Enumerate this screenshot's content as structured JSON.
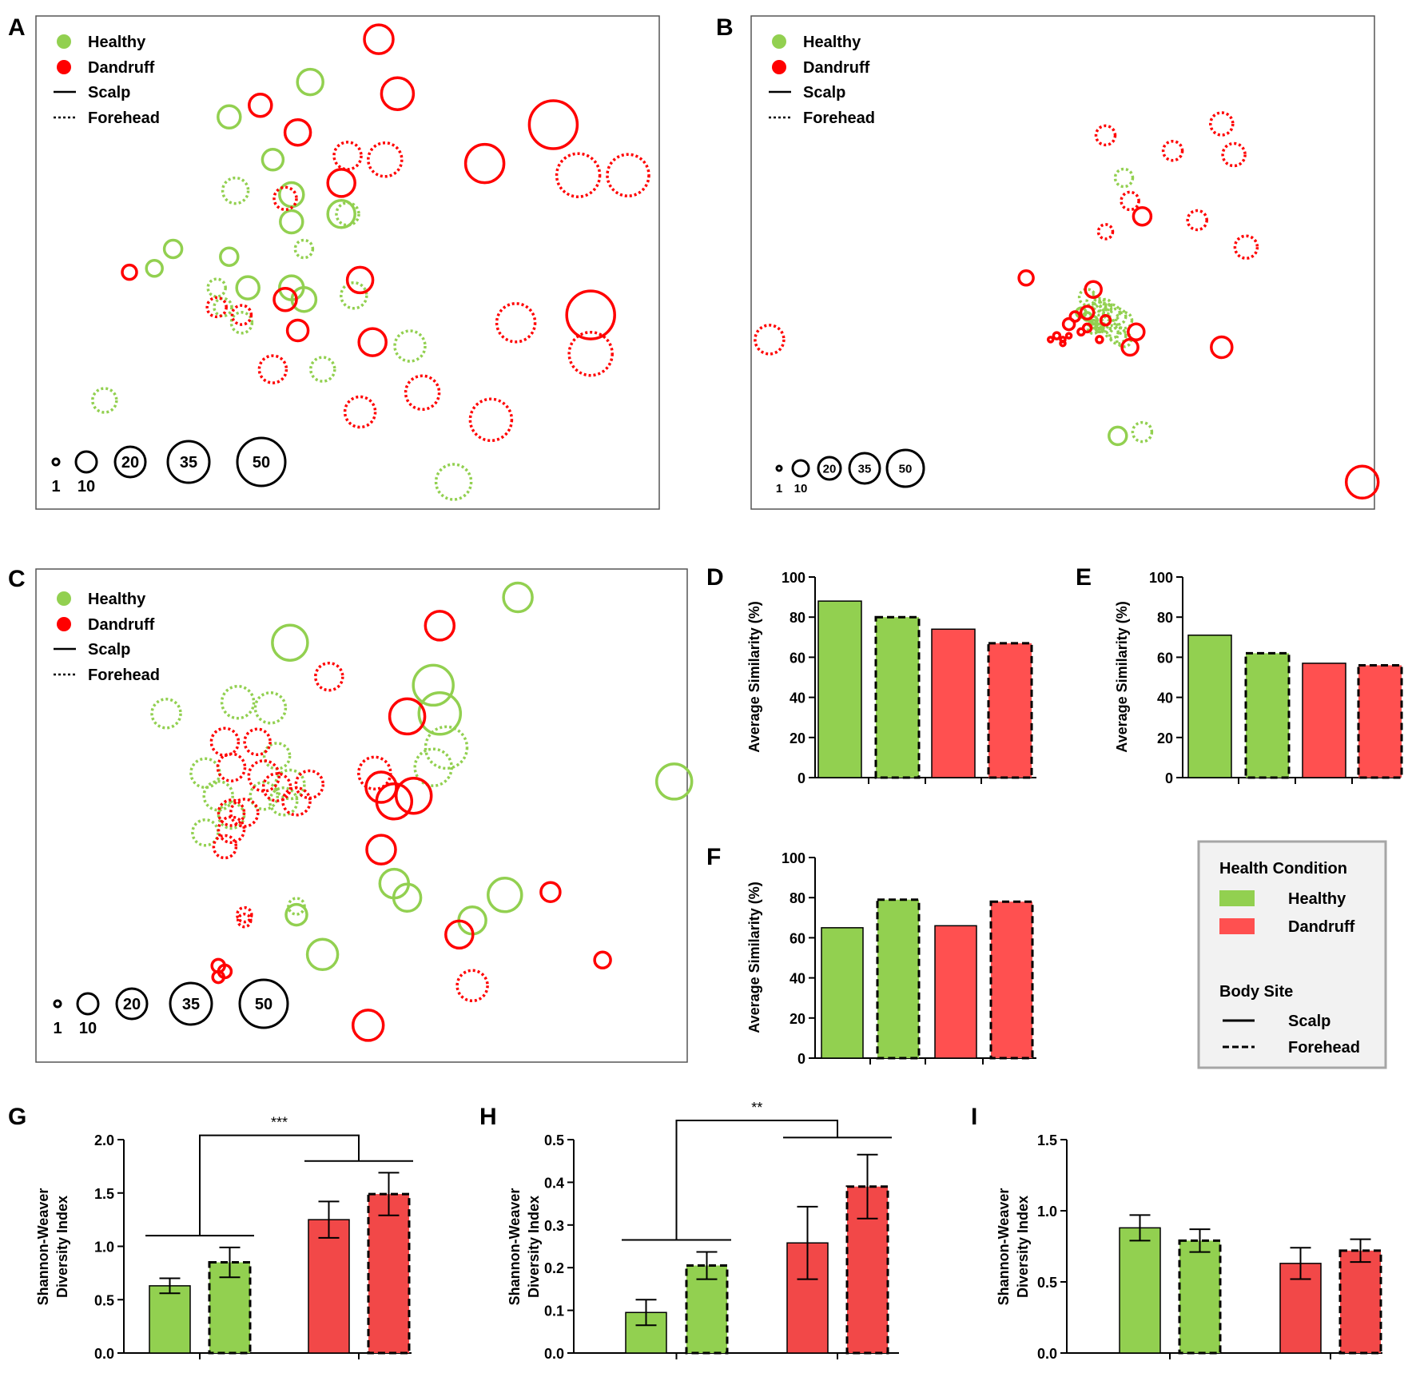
{
  "colors": {
    "healthy": "#92d050",
    "dandruff": "#ff0000",
    "healthy_bar": "#92d050",
    "dandruff_bar": "#ff5050",
    "dandruff_bar_g": "#f24848"
  },
  "mds_legend": {
    "healthy": "Healthy",
    "dandruff": "Dandruff",
    "scalp": "Scalp",
    "forehead": "Forehead"
  },
  "bubble_scale": {
    "values": [
      1,
      10,
      20,
      35,
      50
    ],
    "labels": [
      "1",
      "10",
      "20",
      "35",
      "50"
    ]
  },
  "bar_legend": {
    "health_title": "Health Condition",
    "healthy": "Healthy",
    "dandruff": "Dandruff",
    "site_title": "Body Site",
    "scalp": "Scalp",
    "forehead": "Forehead"
  },
  "chart_data": [
    {
      "panel": "A",
      "type": "scatter",
      "title": "",
      "xlabel": "",
      "ylabel": "",
      "series": [
        {
          "name": "Healthy",
          "site": "Scalp",
          "points": [
            [
              44,
              17,
              16
            ],
            [
              31,
              26,
              14
            ],
            [
              38,
              37,
              13
            ],
            [
              41,
              46,
              15
            ],
            [
              41,
              53,
              14
            ],
            [
              49,
              51,
              17
            ],
            [
              22,
              60,
              11
            ],
            [
              31,
              62,
              11
            ],
            [
              19,
              65,
              10
            ],
            [
              34,
              70,
              14
            ],
            [
              41,
              70,
              15
            ],
            [
              43,
              73,
              15
            ]
          ]
        },
        {
          "name": "Healthy",
          "site": "Forehead",
          "points": [
            [
              32,
              45,
              16
            ],
            [
              50,
              51,
              14
            ],
            [
              43,
              60,
              11
            ],
            [
              29,
              70,
              11
            ],
            [
              51,
              72,
              16
            ],
            [
              30,
              75,
              11
            ],
            [
              33,
              79,
              13
            ],
            [
              60,
              85,
              19
            ],
            [
              46,
              91,
              15
            ],
            [
              11,
              99,
              15
            ],
            [
              67,
              120,
              22
            ]
          ]
        },
        {
          "name": "Dandruff",
          "site": "Scalp",
          "points": [
            [
              55,
              6,
              18
            ],
            [
              58,
              20,
              20
            ],
            [
              36,
              23,
              14
            ],
            [
              42,
              30,
              16
            ],
            [
              83,
              28,
              30
            ],
            [
              72,
              38,
              24
            ],
            [
              49,
              43,
              17
            ],
            [
              15,
              66,
              9
            ],
            [
              52,
              68,
              16
            ],
            [
              40,
              73,
              14
            ],
            [
              89,
              77,
              30
            ],
            [
              42,
              81,
              13
            ],
            [
              54,
              84,
              17
            ]
          ]
        },
        {
          "name": "Dandruff",
          "site": "Forehead",
          "points": [
            [
              50,
              36,
              17
            ],
            [
              56,
              37,
              21
            ],
            [
              40,
              47,
              14
            ],
            [
              87,
              41,
              27
            ],
            [
              95,
              41,
              26
            ],
            [
              29,
              75,
              12
            ],
            [
              33,
              77,
              12
            ],
            [
              77,
              79,
              24
            ],
            [
              89,
              87,
              27
            ],
            [
              38,
              91,
              17
            ],
            [
              62,
              97,
              21
            ],
            [
              52,
              102,
              19
            ],
            [
              73,
              104,
              26
            ]
          ]
        }
      ]
    },
    {
      "panel": "B",
      "type": "scatter",
      "title": "",
      "xlabel": "",
      "ylabel": "",
      "series": [
        {
          "name": "Healthy",
          "site": "Scalp",
          "points": [
            [
              54,
              77,
              6
            ],
            [
              55,
              78,
              5
            ],
            [
              56,
              79,
              5
            ],
            [
              56,
              80,
              5
            ],
            [
              57,
              81,
              5
            ],
            [
              60,
              109,
              11
            ]
          ]
        },
        {
          "name": "Healthy",
          "site": "Forehead",
          "points": [
            [
              61,
              42,
              11
            ],
            [
              55,
              73,
              10
            ],
            [
              56,
              74,
              8
            ],
            [
              57,
              75,
              8
            ],
            [
              58,
              75,
              7
            ],
            [
              57,
              76,
              8
            ],
            [
              58,
              76,
              7
            ],
            [
              59,
              77,
              10
            ],
            [
              60,
              78,
              10
            ],
            [
              61,
              79,
              10
            ],
            [
              57,
              80,
              6
            ],
            [
              56,
              81,
              7
            ],
            [
              58,
              81,
              6
            ],
            [
              59,
              82,
              8
            ],
            [
              60,
              83,
              10
            ],
            [
              61,
              84,
              9
            ],
            [
              64,
              108,
              12
            ]
          ]
        },
        {
          "name": "Dandruff",
          "site": "Scalp",
          "points": [
            [
              64,
              52,
              11
            ],
            [
              56,
              71,
              10
            ],
            [
              45,
              68,
              9
            ],
            [
              55,
              77,
              8
            ],
            [
              53,
              78,
              6
            ],
            [
              58,
              79,
              6
            ],
            [
              52,
              80,
              7
            ],
            [
              55,
              81,
              5
            ],
            [
              54,
              82,
              4
            ],
            [
              50,
              83,
              4
            ],
            [
              49,
              84,
              3
            ],
            [
              51,
              84,
              3
            ],
            [
              51,
              85,
              3
            ],
            [
              52,
              83,
              3
            ],
            [
              57,
              84,
              4
            ],
            [
              63,
              82,
              10
            ],
            [
              62,
              86,
              10
            ],
            [
              77,
              86,
              13
            ],
            [
              100,
              121,
              20
            ]
          ]
        },
        {
          "name": "Dandruff",
          "site": "Forehead",
          "points": [
            [
              58,
              31,
              12
            ],
            [
              69,
              35,
              12
            ],
            [
              77,
              28,
              14
            ],
            [
              79,
              36,
              14
            ],
            [
              62,
              48,
              11
            ],
            [
              73,
              53,
              12
            ],
            [
              58,
              56,
              9
            ],
            [
              81,
              60,
              14
            ],
            [
              3,
              84,
              18
            ]
          ]
        }
      ]
    },
    {
      "panel": "C",
      "type": "scatter",
      "title": "",
      "xlabel": "",
      "ylabel": "",
      "series": [
        {
          "name": "Healthy",
          "site": "Scalp",
          "points": [
            [
              74,
              10,
              18
            ],
            [
              39,
              26,
              22
            ],
            [
              61,
              41,
              25
            ],
            [
              62,
              51,
              26
            ],
            [
              98,
              75,
              22
            ],
            [
              55,
              111,
              18
            ],
            [
              57,
              116,
              17
            ],
            [
              40,
              122,
              13
            ],
            [
              67,
              124,
              17
            ],
            [
              72,
              115,
              21
            ],
            [
              44,
              136,
              19
            ]
          ]
        },
        {
          "name": "Healthy",
          "site": "Forehead",
          "points": [
            [
              20,
              51,
              18
            ],
            [
              31,
              47,
              20
            ],
            [
              36,
              49,
              19
            ],
            [
              37,
              66,
              16
            ],
            [
              26,
              72,
              18
            ],
            [
              39,
              76,
              18
            ],
            [
              35,
              80,
              17
            ],
            [
              28,
              80,
              18
            ],
            [
              38,
              82,
              17
            ],
            [
              30,
              87,
              16
            ],
            [
              26,
              93,
              16
            ],
            [
              63,
              63,
              26
            ],
            [
              61,
              70,
              23
            ],
            [
              40,
              119,
              10
            ]
          ]
        },
        {
          "name": "Dandruff",
          "site": "Scalp",
          "points": [
            [
              62,
              20,
              18
            ],
            [
              57,
              52,
              22
            ],
            [
              53,
              77,
              19
            ],
            [
              55,
              82,
              22
            ],
            [
              58,
              80,
              22
            ],
            [
              53,
              99,
              18
            ],
            [
              28,
              140,
              8
            ],
            [
              29,
              142,
              8
            ],
            [
              28,
              144,
              7
            ],
            [
              65,
              129,
              17
            ],
            [
              79,
              114,
              12
            ],
            [
              87,
              138,
              10
            ],
            [
              51,
              161,
              19
            ]
          ]
        },
        {
          "name": "Dandruff",
          "site": "Forehead",
          "points": [
            [
              45,
              38,
              17
            ],
            [
              29,
              61,
              17
            ],
            [
              34,
              61,
              16
            ],
            [
              52,
              72,
              20
            ],
            [
              30,
              70,
              17
            ],
            [
              35,
              73,
              19
            ],
            [
              37,
              77,
              17
            ],
            [
              32,
              86,
              17
            ],
            [
              42,
              76,
              17
            ],
            [
              40,
              82,
              17
            ],
            [
              30,
              86,
              16
            ],
            [
              30,
              92,
              16
            ],
            [
              29,
              98,
              14
            ],
            [
              32,
              122,
              9
            ],
            [
              32,
              124,
              8
            ],
            [
              67,
              147,
              19
            ]
          ]
        }
      ]
    },
    {
      "panel": "D",
      "type": "bar",
      "title": "",
      "xlabel": "",
      "ylabel": "Average Similarity (%)",
      "ylim": [
        0,
        100
      ],
      "ticks": [
        0,
        20,
        40,
        60,
        80,
        100
      ],
      "categories": [
        "Healthy Scalp",
        "Healthy Forehead",
        "Dandruff Scalp",
        "Dandruff Forehead"
      ],
      "values": [
        88,
        80,
        74,
        67
      ],
      "sites": [
        "scalp",
        "forehead",
        "scalp",
        "forehead"
      ]
    },
    {
      "panel": "E",
      "type": "bar",
      "title": "",
      "xlabel": "",
      "ylabel": "Average Similarity (%)",
      "ylim": [
        0,
        100
      ],
      "ticks": [
        0,
        20,
        40,
        60,
        80,
        100
      ],
      "categories": [
        "Healthy Scalp",
        "Healthy Forehead",
        "Dandruff Scalp",
        "Dandruff Forehead"
      ],
      "values": [
        71,
        62,
        57,
        56
      ],
      "sites": [
        "scalp",
        "forehead",
        "scalp",
        "forehead"
      ]
    },
    {
      "panel": "F",
      "type": "bar",
      "title": "",
      "xlabel": "",
      "ylabel": "Average Similarity (%)",
      "ylim": [
        0,
        100
      ],
      "ticks": [
        0,
        20,
        40,
        60,
        80,
        100
      ],
      "categories": [
        "Healthy Scalp",
        "Healthy Forehead",
        "Dandruff Scalp",
        "Dandruff Forehead"
      ],
      "values": [
        65,
        79,
        66,
        78
      ],
      "sites": [
        "scalp",
        "forehead",
        "scalp",
        "forehead"
      ]
    },
    {
      "panel": "G",
      "type": "bar",
      "title": "",
      "xlabel": "",
      "ylabel": "Shannon-Weaver Diversity Index",
      "ylim": [
        0,
        2.0
      ],
      "ticks": [
        0,
        0.5,
        1.0,
        1.5,
        2.0
      ],
      "tick_labels": [
        "0.0",
        "0.5",
        "1.0",
        "1.5",
        "2.0"
      ],
      "categories": [
        "Healthy Scalp",
        "Healthy Forehead",
        "Dandruff Scalp",
        "Dandruff Forehead"
      ],
      "values": [
        0.63,
        0.85,
        1.25,
        1.49
      ],
      "errors": [
        0.07,
        0.14,
        0.17,
        0.2
      ],
      "sites": [
        "scalp",
        "forehead",
        "scalp",
        "forehead"
      ],
      "significance": {
        "label": "***",
        "left_bracket": 1.1,
        "right_bracket": 1.8,
        "top": 2.04
      }
    },
    {
      "panel": "H",
      "type": "bar",
      "title": "",
      "xlabel": "",
      "ylabel": "Shannon-Weaver Diversity Index",
      "ylim": [
        0,
        0.5
      ],
      "ticks": [
        0,
        0.1,
        0.2,
        0.3,
        0.4,
        0.5
      ],
      "tick_labels": [
        "0.0",
        "0.1",
        "0.2",
        "0.3",
        "0.4",
        "0.5"
      ],
      "categories": [
        "Healthy Scalp",
        "Healthy Forehead",
        "Dandruff Scalp",
        "Dandruff Forehead"
      ],
      "values": [
        0.095,
        0.205,
        0.258,
        0.39
      ],
      "errors": [
        0.03,
        0.032,
        0.085,
        0.075
      ],
      "sites": [
        "scalp",
        "forehead",
        "scalp",
        "forehead"
      ],
      "significance": {
        "label": "**",
        "left_bracket": 0.265,
        "right_bracket": 0.505,
        "top": 0.545
      }
    },
    {
      "panel": "I",
      "type": "bar",
      "title": "",
      "xlabel": "",
      "ylabel": "Shannon-Weaver Diversity Index",
      "ylim": [
        0,
        1.5
      ],
      "ticks": [
        0,
        0.5,
        1.0,
        1.5
      ],
      "tick_labels": [
        "0.0",
        "0.5",
        "1.0",
        "1.5"
      ],
      "categories": [
        "Healthy Scalp",
        "Healthy Forehead",
        "Dandruff Scalp",
        "Dandruff Forehead"
      ],
      "values": [
        0.88,
        0.79,
        0.63,
        0.72
      ],
      "errors": [
        0.09,
        0.08,
        0.11,
        0.08
      ],
      "sites": [
        "scalp",
        "forehead",
        "scalp",
        "forehead"
      ]
    }
  ]
}
